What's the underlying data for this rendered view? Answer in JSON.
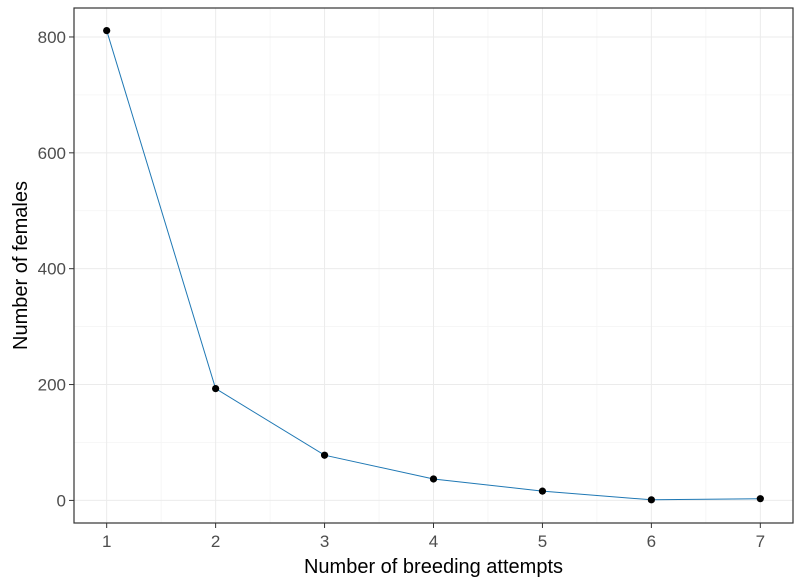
{
  "chart_data": {
    "type": "line",
    "xlabel": "Number of breeding attempts",
    "ylabel": "Number of females",
    "x": [
      1,
      2,
      3,
      4,
      5,
      6,
      7
    ],
    "series": [
      {
        "values": [
          811,
          193,
          78,
          37,
          16,
          1,
          3
        ]
      }
    ],
    "xlim": [
      0.7,
      7.3
    ],
    "ylim": [
      -39,
      850
    ],
    "x_ticks": [
      "1",
      "2",
      "3",
      "4",
      "5",
      "6",
      "7"
    ],
    "y_ticks": [
      "0",
      "200",
      "400",
      "600",
      "800"
    ],
    "grid": true,
    "legend": "none",
    "colors": {
      "line": "#1f78b4",
      "points": "#000000",
      "grid_major": "#ebebeb",
      "grid_minor": "#f4f4f4",
      "panel_border": "#333333"
    }
  }
}
